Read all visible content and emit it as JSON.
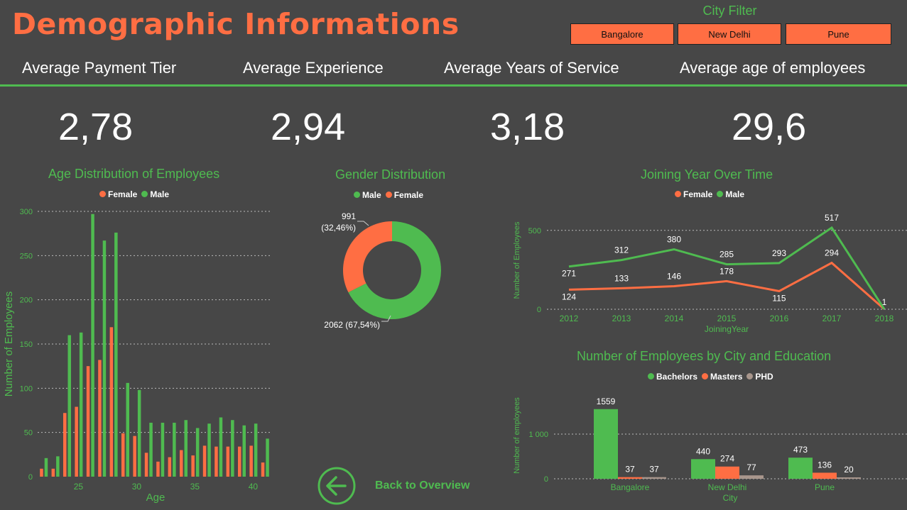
{
  "page": {
    "title": "Demographic Informations"
  },
  "city_filter": {
    "title": "City Filter",
    "options": [
      "Bangalore",
      "New Delhi",
      "Pune"
    ]
  },
  "kpis": [
    {
      "label": "Average Payment Tier",
      "value": "2,78"
    },
    {
      "label": "Average Experience",
      "value": "2,94"
    },
    {
      "label": "Average Years of Service",
      "value": "3,18"
    },
    {
      "label": "Average age of employees",
      "value": "29,6"
    }
  ],
  "colors": {
    "male": "#4fbb50",
    "female": "#ff6e43",
    "phd": "#a8968c",
    "accent": "#4fbb50",
    "title": "#ff6e43"
  },
  "back": {
    "label": "Back to Overview",
    "icon": "arrow-left-circle-icon"
  },
  "chart_data": [
    {
      "type": "bar",
      "title": "Age Distribution of Employees",
      "xlabel": "Age",
      "ylabel": "Number of Employees",
      "ylim": [
        0,
        300
      ],
      "yticks": [
        0,
        50,
        100,
        150,
        200,
        250,
        300
      ],
      "xticks": [
        25,
        30,
        35,
        40
      ],
      "legend": [
        "Female",
        "Male"
      ],
      "categories": [
        22,
        23,
        24,
        25,
        26,
        27,
        28,
        29,
        30,
        31,
        32,
        33,
        34,
        35,
        36,
        37,
        38,
        39,
        40,
        41
      ],
      "series": [
        {
          "name": "Female",
          "values": [
            9,
            9,
            72,
            79,
            125,
            132,
            169,
            49,
            46,
            27,
            17,
            22,
            30,
            24,
            35,
            34,
            34,
            34,
            35,
            16
          ]
        },
        {
          "name": "Male",
          "values": [
            21,
            23,
            160,
            163,
            297,
            267,
            276,
            106,
            98,
            61,
            61,
            61,
            64,
            55,
            60,
            67,
            64,
            58,
            60,
            43
          ]
        }
      ]
    },
    {
      "type": "pie",
      "title": "Gender Distribution",
      "legend": [
        "Male",
        "Female"
      ],
      "slices": [
        {
          "name": "Male",
          "value": 2062,
          "label": "2062 (67,54%)"
        },
        {
          "name": "Female",
          "value": 991,
          "label_line1": "991",
          "label_line2": "(32,46%)"
        }
      ]
    },
    {
      "type": "line",
      "title": "Joining Year Over Time",
      "xlabel": "JoiningYear",
      "ylabel": "Number of Employees",
      "ylim": [
        0,
        560
      ],
      "yticks": [
        0,
        500
      ],
      "legend": [
        "Female",
        "Male"
      ],
      "x": [
        2012,
        2013,
        2014,
        2015,
        2016,
        2017,
        2018
      ],
      "series": [
        {
          "name": "Female",
          "values": [
            124,
            133,
            146,
            178,
            115,
            294,
            1
          ]
        },
        {
          "name": "Male",
          "values": [
            271,
            312,
            380,
            285,
            293,
            517,
            1
          ]
        }
      ]
    },
    {
      "type": "bar",
      "title": "Number of Employees by City and Education",
      "xlabel": "City",
      "ylabel": "Number of employees",
      "ylim": [
        0,
        1700
      ],
      "yticks": [
        0,
        1000
      ],
      "ytick_labels": [
        "0",
        "1 000"
      ],
      "legend": [
        "Bachelors",
        "Masters",
        "PHD"
      ],
      "categories": [
        "Bangalore",
        "New Delhi",
        "Pune"
      ],
      "series": [
        {
          "name": "Bachelors",
          "values": [
            1559,
            440,
            473
          ]
        },
        {
          "name": "Masters",
          "values": [
            37,
            274,
            136
          ]
        },
        {
          "name": "PHD",
          "values": [
            37,
            77,
            20
          ]
        }
      ]
    }
  ]
}
